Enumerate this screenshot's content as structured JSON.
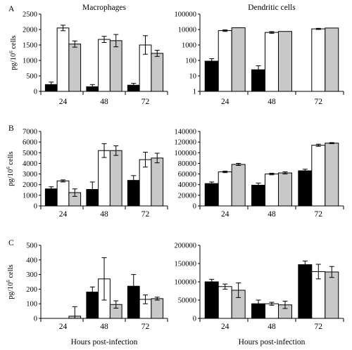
{
  "chart_data": [
    {
      "type": "bar",
      "panel": "A",
      "title": "Macrophages",
      "ylabel": "pg/10^6 cells",
      "xlabel": "",
      "ylim": [
        0,
        2500
      ],
      "yticks": [
        "0",
        "500",
        "1000",
        "1500",
        "2000",
        "2500"
      ],
      "scale": "linear",
      "categories": [
        "24",
        "48",
        "72"
      ],
      "series": [
        {
          "color": "#000000",
          "values": [
            220,
            150,
            200
          ],
          "errors": [
            80,
            70,
            60
          ]
        },
        {
          "color": "#ffffff",
          "values": [
            2050,
            1680,
            1500
          ],
          "errors": [
            90,
            100,
            300
          ]
        },
        {
          "color": "#c8c8c8",
          "values": [
            1530,
            1640,
            1230
          ],
          "errors": [
            100,
            200,
            100
          ]
        }
      ]
    },
    {
      "type": "bar",
      "panel": "",
      "title": "Dendritic cells",
      "ylabel": "",
      "xlabel": "",
      "ylim": [
        1,
        100000
      ],
      "yticks": [
        "1",
        "10",
        "100",
        "1000",
        "10000",
        "100000"
      ],
      "scale": "log",
      "categories": [
        "24",
        "48",
        "72"
      ],
      "series": [
        {
          "color": "#000000",
          "values": [
            90,
            25,
            0
          ],
          "errors": [
            40,
            20,
            0
          ]
        },
        {
          "color": "#ffffff",
          "values": [
            8500,
            6500,
            11000
          ],
          "errors": [
            1000,
            800,
            900
          ]
        },
        {
          "color": "#c8c8c8",
          "values": [
            13000,
            7500,
            12500
          ],
          "errors": [
            0,
            0,
            0
          ]
        }
      ]
    },
    {
      "type": "bar",
      "panel": "B",
      "title": "",
      "ylabel": "pg/10^6 cells",
      "xlabel": "",
      "ylim": [
        0,
        7000
      ],
      "yticks": [
        "0",
        "1000",
        "2000",
        "3000",
        "4000",
        "5000",
        "6000",
        "7000"
      ],
      "scale": "linear",
      "categories": [
        "24",
        "48",
        "72"
      ],
      "series": [
        {
          "color": "#000000",
          "values": [
            1600,
            1550,
            2400
          ],
          "errors": [
            200,
            700,
            450
          ]
        },
        {
          "color": "#ffffff",
          "values": [
            2350,
            5200,
            4350
          ],
          "errors": [
            100,
            650,
            700
          ]
        },
        {
          "color": "#c8c8c8",
          "values": [
            1250,
            5200,
            4500
          ],
          "errors": [
            350,
            450,
            450
          ]
        }
      ]
    },
    {
      "type": "bar",
      "panel": "",
      "title": "",
      "ylabel": "",
      "xlabel": "",
      "ylim": [
        0,
        140000
      ],
      "yticks": [
        "0",
        "20000",
        "40000",
        "60000",
        "80000",
        "100000",
        "120000",
        "140000"
      ],
      "scale": "linear",
      "categories": [
        "24",
        "48",
        "72"
      ],
      "series": [
        {
          "color": "#000000",
          "values": [
            42000,
            39000,
            66000
          ],
          "errors": [
            3000,
            4000,
            3000
          ]
        },
        {
          "color": "#ffffff",
          "values": [
            64000,
            60000,
            114000
          ],
          "errors": [
            1500,
            1500,
            2000
          ]
        },
        {
          "color": "#c8c8c8",
          "values": [
            78000,
            62000,
            118000
          ],
          "errors": [
            2000,
            2000,
            1000
          ]
        }
      ]
    },
    {
      "type": "bar",
      "panel": "C",
      "title": "",
      "ylabel": "pg/10^6 cells",
      "xlabel": "Hours post-infection",
      "ylim": [
        0,
        500
      ],
      "yticks": [
        "0",
        "100",
        "200",
        "300",
        "400",
        "500"
      ],
      "scale": "linear",
      "categories": [
        "24",
        "48",
        "72"
      ],
      "series": [
        {
          "color": "#000000",
          "values": [
            0,
            180,
            220
          ],
          "errors": [
            0,
            35,
            80
          ]
        },
        {
          "color": "#ffffff",
          "values": [
            0,
            270,
            130
          ],
          "errors": [
            0,
            145,
            30
          ]
        },
        {
          "color": "#c8c8c8",
          "values": [
            15,
            95,
            135
          ],
          "errors": [
            65,
            25,
            10
          ]
        }
      ]
    },
    {
      "type": "bar",
      "panel": "",
      "title": "",
      "ylabel": "",
      "xlabel": "Hours post-infection",
      "ylim": [
        0,
        200000
      ],
      "yticks": [
        "0",
        "50000",
        "100000",
        "150000",
        "200000"
      ],
      "scale": "linear",
      "categories": [
        "24",
        "48",
        "72"
      ],
      "series": [
        {
          "color": "#000000",
          "values": [
            100000,
            40000,
            147000
          ],
          "errors": [
            7000,
            10000,
            10000
          ]
        },
        {
          "color": "#ffffff",
          "values": [
            87000,
            40000,
            128000
          ],
          "errors": [
            7000,
            4000,
            20000
          ]
        },
        {
          "color": "#c8c8c8",
          "values": [
            77000,
            37000,
            127000
          ],
          "errors": [
            20000,
            10000,
            15000
          ]
        }
      ]
    }
  ]
}
